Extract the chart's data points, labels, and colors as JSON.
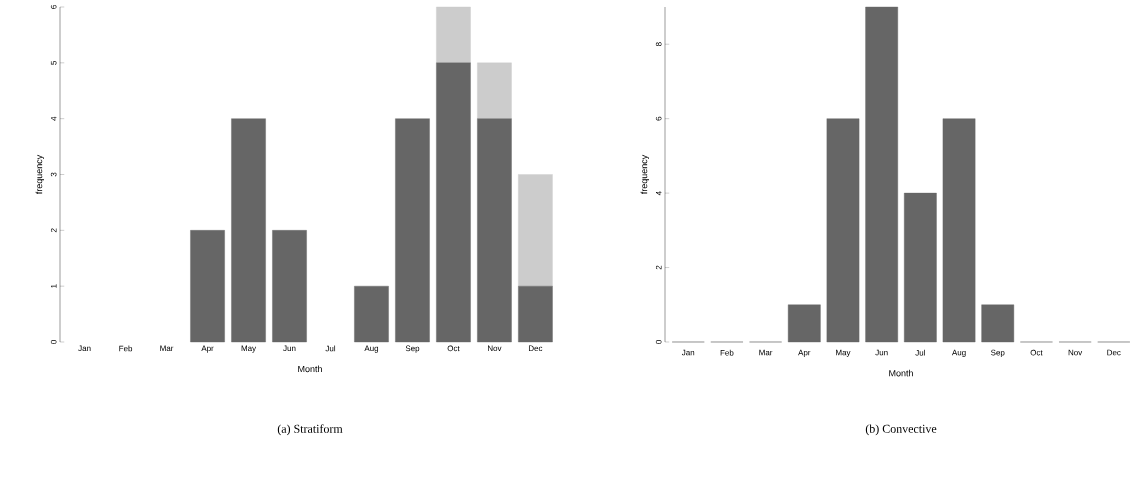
{
  "chart_data": [
    {
      "type": "bar",
      "stacked": true,
      "title": "(a) Stratiform",
      "xlabel": "Month",
      "ylabel": "frequency",
      "categories": [
        "Jan",
        "Feb",
        "Mar",
        "Apr",
        "May",
        "Jun",
        "Jul",
        "Aug",
        "Sep",
        "Oct",
        "Nov",
        "Dec"
      ],
      "series": [
        {
          "color": "#666666",
          "values": [
            0,
            0,
            0,
            2,
            4,
            2,
            0,
            1,
            4,
            5,
            4,
            1
          ]
        },
        {
          "color": "#cccccc",
          "values": [
            0,
            0,
            0,
            0,
            0,
            0,
            0,
            0,
            0,
            1,
            1,
            2
          ]
        }
      ],
      "ylim": [
        0,
        6
      ],
      "yticks": [
        0,
        1,
        2,
        3,
        4,
        5,
        6
      ],
      "grid": false
    },
    {
      "type": "bar",
      "title": "(b) Convective",
      "xlabel": "Month",
      "ylabel": "frequency",
      "categories": [
        "Jan",
        "Feb",
        "Mar",
        "Apr",
        "May",
        "Jun",
        "Jul",
        "Aug",
        "Sep",
        "Oct",
        "Nov",
        "Dec"
      ],
      "series": [
        {
          "color": "#666666",
          "values": [
            0,
            0,
            0,
            1,
            6,
            9,
            4,
            6,
            1,
            0,
            0,
            0
          ]
        }
      ],
      "ylim": [
        0,
        9
      ],
      "yticks": [
        0,
        2,
        4,
        6,
        8
      ],
      "grid": false
    }
  ]
}
